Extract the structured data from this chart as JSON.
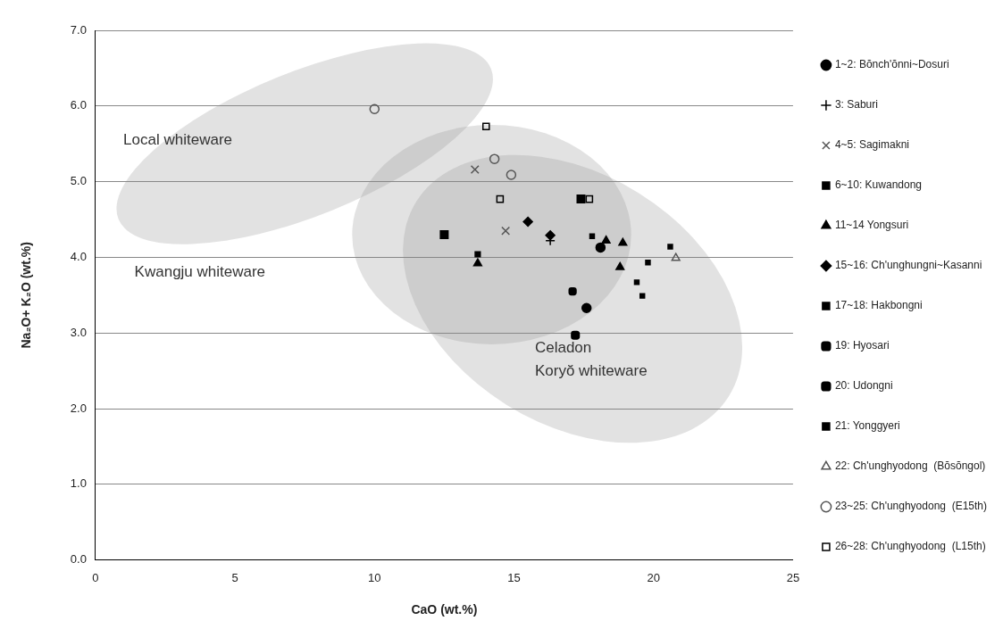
{
  "chart_data": {
    "type": "scatter",
    "xlabel": "CaO (wt.%)",
    "ylabel": "Na₂O+ K₂O (wt.%)",
    "xlim": [
      0,
      25
    ],
    "xticks": [
      0,
      5,
      10,
      15,
      20,
      25
    ],
    "ylim": [
      0,
      7
    ],
    "yticks": [
      {
        "value": 0,
        "label": "0.0"
      },
      {
        "value": 1,
        "label": "1.0"
      },
      {
        "value": 2,
        "label": "2.0"
      },
      {
        "value": 3,
        "label": "3.0"
      },
      {
        "value": 4,
        "label": "4.0"
      },
      {
        "value": 5,
        "label": "5.0"
      },
      {
        "value": 6,
        "label": "6.0"
      },
      {
        "value": 7,
        "label": "7.0"
      }
    ],
    "grid": "y",
    "legend": "right",
    "annotations": [
      "Local whiteware",
      "Kwangju whiteware",
      "Celadon",
      "Koryŏ whiteware"
    ],
    "series": [
      {
        "name": "1~2: Bŏnch'ŏnni~Dosuri",
        "color": "#000000",
        "marker": "circle",
        "x": [
          17.6,
          18.1
        ],
        "values": [
          3.33,
          4.13
        ]
      },
      {
        "name": "3: Saburi",
        "color": "#000000",
        "marker": "cross",
        "x": [
          16.3
        ],
        "values": [
          4.22
        ]
      },
      {
        "name": "4~5: Sagimakni",
        "color": "#555555",
        "marker": "x",
        "x": [
          13.6,
          14.7
        ],
        "values": [
          5.16,
          4.35
        ]
      },
      {
        "name": "6~10: Kuwandong",
        "color": "#000000",
        "marker": "square-flat",
        "x": [
          17.8,
          20.6,
          19.8,
          19.4,
          19.6
        ],
        "values": [
          4.28,
          4.14,
          3.93,
          3.67,
          3.49
        ]
      },
      {
        "name": "11~14 Yongsuri",
        "color": "#000000",
        "marker": "triangle",
        "x": [
          13.7,
          18.3,
          18.9,
          18.8
        ],
        "values": [
          3.92,
          4.22,
          4.19,
          3.87
        ]
      },
      {
        "name": "15~16: Ch'unghungni~Kasanni",
        "color": "#000000",
        "marker": "diamond",
        "x": [
          15.5,
          16.3
        ],
        "values": [
          4.47,
          4.29
        ]
      },
      {
        "name": "17~18: Hakbongni",
        "color": "#000000",
        "marker": "square",
        "x": [
          12.5,
          17.4
        ],
        "values": [
          4.3,
          4.77
        ]
      },
      {
        "name": "19: Hyosari",
        "color": "#000000",
        "marker": "square-x",
        "x": [
          17.2
        ],
        "values": [
          2.97
        ]
      },
      {
        "name": "20: Udongni",
        "color": "#000000",
        "marker": "square-pattern",
        "x": [
          17.1
        ],
        "values": [
          3.55
        ]
      },
      {
        "name": "21: Yonggyeri",
        "color": "#000000",
        "marker": "square-dots",
        "x": [
          13.7
        ],
        "values": [
          4.04
        ]
      },
      {
        "name": "22: Ch'unghyodong  (Bŏsŏngol)",
        "color": "#555555",
        "marker": "triangle-open",
        "x": [
          20.8
        ],
        "values": [
          3.99
        ]
      },
      {
        "name": "23~25: Ch'unghyodong  (E15th)",
        "color": "#555555",
        "marker": "circle-open",
        "x": [
          10.0,
          14.3,
          14.9
        ],
        "values": [
          5.96,
          5.3,
          5.09
        ]
      },
      {
        "name": "26~28: Ch'unghyodong  (L15th)",
        "color": "#000000",
        "marker": "square-open",
        "x": [
          14.0,
          14.5,
          17.7
        ],
        "values": [
          5.73,
          4.77,
          4.77
        ]
      }
    ]
  }
}
